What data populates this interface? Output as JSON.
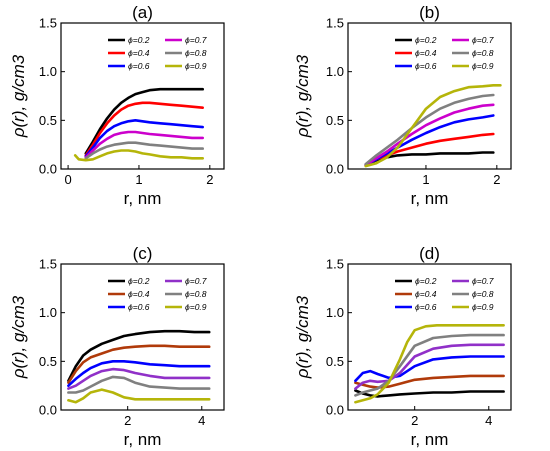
{
  "chart_data": [
    {
      "type": "line",
      "title": "(a)",
      "xlabel": "r, nm",
      "ylabel": "ρ(r), g/cm3",
      "xlim": [
        -0.1,
        2.2
      ],
      "ylim": [
        0,
        1.5
      ],
      "xticks": [
        0,
        1,
        2
      ],
      "yticks": [
        0.0,
        0.5,
        1.0,
        1.5
      ],
      "xtick_labels": [
        "0",
        "1",
        "2"
      ],
      "ytick_labels": [
        "0.0",
        "0.5",
        "1.0",
        "1.5"
      ],
      "legend_placement": "top-right",
      "series": [
        {
          "name": "ϕ=0.2",
          "color": "#000000",
          "x": [
            0.25,
            0.35,
            0.45,
            0.55,
            0.65,
            0.75,
            0.85,
            0.95,
            1.05,
            1.15,
            1.3,
            1.45,
            1.6,
            1.75,
            1.9
          ],
          "y": [
            0.16,
            0.28,
            0.41,
            0.52,
            0.61,
            0.68,
            0.73,
            0.77,
            0.79,
            0.81,
            0.82,
            0.82,
            0.82,
            0.82,
            0.82
          ]
        },
        {
          "name": "ϕ=0.4",
          "color": "#ff0000",
          "x": [
            0.25,
            0.35,
            0.45,
            0.55,
            0.65,
            0.75,
            0.85,
            0.95,
            1.05,
            1.15,
            1.3,
            1.45,
            1.6,
            1.75,
            1.9
          ],
          "y": [
            0.14,
            0.25,
            0.37,
            0.47,
            0.55,
            0.61,
            0.65,
            0.67,
            0.68,
            0.68,
            0.67,
            0.66,
            0.65,
            0.64,
            0.63
          ]
        },
        {
          "name": "ϕ=0.6",
          "color": "#0000ff",
          "x": [
            0.25,
            0.35,
            0.45,
            0.55,
            0.65,
            0.75,
            0.85,
            0.95,
            1.05,
            1.15,
            1.3,
            1.45,
            1.6,
            1.75,
            1.9
          ],
          "y": [
            0.13,
            0.22,
            0.32,
            0.39,
            0.44,
            0.47,
            0.49,
            0.5,
            0.49,
            0.48,
            0.47,
            0.46,
            0.45,
            0.44,
            0.43
          ]
        },
        {
          "name": "ϕ=0.7",
          "color": "#cc00cc",
          "x": [
            0.25,
            0.35,
            0.45,
            0.55,
            0.65,
            0.75,
            0.85,
            0.95,
            1.05,
            1.15,
            1.3,
            1.45,
            1.6,
            1.75,
            1.9
          ],
          "y": [
            0.12,
            0.19,
            0.26,
            0.31,
            0.35,
            0.37,
            0.38,
            0.38,
            0.37,
            0.36,
            0.35,
            0.34,
            0.33,
            0.32,
            0.32
          ]
        },
        {
          "name": "ϕ=0.8",
          "color": "#808080",
          "x": [
            0.25,
            0.35,
            0.45,
            0.55,
            0.65,
            0.75,
            0.85,
            0.95,
            1.05,
            1.15,
            1.3,
            1.45,
            1.6,
            1.75,
            1.9
          ],
          "y": [
            0.11,
            0.16,
            0.2,
            0.23,
            0.25,
            0.26,
            0.27,
            0.27,
            0.26,
            0.25,
            0.24,
            0.23,
            0.22,
            0.21,
            0.21
          ]
        },
        {
          "name": "ϕ=0.9",
          "color": "#b5b50a",
          "x": [
            0.1,
            0.15,
            0.25,
            0.35,
            0.45,
            0.55,
            0.65,
            0.75,
            0.85,
            0.95,
            1.05,
            1.15,
            1.3,
            1.45,
            1.6,
            1.75,
            1.9
          ],
          "y": [
            0.14,
            0.1,
            0.09,
            0.1,
            0.13,
            0.16,
            0.18,
            0.19,
            0.19,
            0.18,
            0.16,
            0.15,
            0.13,
            0.12,
            0.12,
            0.11,
            0.11
          ]
        }
      ]
    },
    {
      "type": "line",
      "title": "(b)",
      "xlabel": "r, nm",
      "ylabel": "ρ(r), g/cm3",
      "xlim": [
        -0.1,
        2.2
      ],
      "ylim": [
        0,
        1.5
      ],
      "xticks": [
        1,
        2
      ],
      "yticks": [
        0.0,
        0.5,
        1.0,
        1.5
      ],
      "xtick_labels": [
        "1",
        "2"
      ],
      "ytick_labels": [
        "0.0",
        "0.5",
        "1.0",
        "1.5"
      ],
      "legend_placement": "top-right",
      "series": [
        {
          "name": "ϕ=0.2",
          "color": "#000000",
          "x": [
            0.15,
            0.3,
            0.45,
            0.6,
            0.8,
            1.0,
            1.2,
            1.4,
            1.6,
            1.8,
            1.95
          ],
          "y": [
            0.04,
            0.09,
            0.12,
            0.14,
            0.15,
            0.15,
            0.16,
            0.16,
            0.16,
            0.17,
            0.17
          ]
        },
        {
          "name": "ϕ=0.4",
          "color": "#ff0000",
          "x": [
            0.15,
            0.3,
            0.45,
            0.6,
            0.8,
            1.0,
            1.2,
            1.4,
            1.6,
            1.8,
            1.95
          ],
          "y": [
            0.04,
            0.1,
            0.14,
            0.18,
            0.22,
            0.26,
            0.29,
            0.31,
            0.33,
            0.35,
            0.36
          ]
        },
        {
          "name": "ϕ=0.6",
          "color": "#0000ff",
          "x": [
            0.15,
            0.3,
            0.45,
            0.6,
            0.8,
            1.0,
            1.2,
            1.4,
            1.6,
            1.8,
            1.95
          ],
          "y": [
            0.04,
            0.1,
            0.16,
            0.22,
            0.3,
            0.37,
            0.43,
            0.48,
            0.51,
            0.53,
            0.55
          ]
        },
        {
          "name": "ϕ=0.7",
          "color": "#cc00cc",
          "x": [
            0.15,
            0.3,
            0.45,
            0.6,
            0.8,
            1.0,
            1.2,
            1.4,
            1.6,
            1.8,
            1.95
          ],
          "y": [
            0.04,
            0.11,
            0.18,
            0.26,
            0.36,
            0.45,
            0.52,
            0.58,
            0.62,
            0.65,
            0.66
          ]
        },
        {
          "name": "ϕ=0.8",
          "color": "#808080",
          "x": [
            0.15,
            0.3,
            0.45,
            0.6,
            0.8,
            1.0,
            1.2,
            1.4,
            1.6,
            1.8,
            1.95
          ],
          "y": [
            0.05,
            0.14,
            0.22,
            0.3,
            0.42,
            0.53,
            0.62,
            0.68,
            0.72,
            0.75,
            0.76
          ]
        },
        {
          "name": "ϕ=0.9",
          "color": "#b5b50a",
          "x": [
            0.15,
            0.3,
            0.45,
            0.6,
            0.8,
            1.0,
            1.2,
            1.4,
            1.6,
            1.8,
            1.95,
            2.05
          ],
          "y": [
            0.03,
            0.06,
            0.12,
            0.22,
            0.42,
            0.62,
            0.74,
            0.8,
            0.84,
            0.85,
            0.86,
            0.86
          ]
        }
      ]
    },
    {
      "type": "line",
      "title": "(c)",
      "xlabel": "r, nm",
      "ylabel": "ρ(r), g/cm3",
      "xlim": [
        0.2,
        4.6
      ],
      "ylim": [
        0,
        1.5
      ],
      "xticks": [
        2,
        4
      ],
      "yticks": [
        0.0,
        0.5,
        1.0,
        1.5
      ],
      "xtick_labels": [
        "2",
        "4"
      ],
      "ytick_labels": [
        "0.0",
        "0.5",
        "1.0",
        "1.5"
      ],
      "legend_placement": "top-right",
      "series": [
        {
          "name": "ϕ=0.2",
          "color": "#000000",
          "x": [
            0.4,
            0.6,
            0.8,
            1.0,
            1.3,
            1.6,
            1.9,
            2.2,
            2.6,
            3.0,
            3.4,
            3.8,
            4.2
          ],
          "y": [
            0.3,
            0.45,
            0.56,
            0.62,
            0.68,
            0.72,
            0.76,
            0.78,
            0.8,
            0.81,
            0.81,
            0.8,
            0.8
          ]
        },
        {
          "name": "ϕ=0.4",
          "color": "#b03a0a",
          "x": [
            0.4,
            0.6,
            0.8,
            1.0,
            1.3,
            1.6,
            1.9,
            2.2,
            2.6,
            3.0,
            3.4,
            3.8,
            4.2
          ],
          "y": [
            0.28,
            0.4,
            0.49,
            0.54,
            0.58,
            0.62,
            0.64,
            0.65,
            0.66,
            0.66,
            0.65,
            0.65,
            0.65
          ]
        },
        {
          "name": "ϕ=0.6",
          "color": "#0000ff",
          "x": [
            0.4,
            0.6,
            0.8,
            1.0,
            1.3,
            1.6,
            1.9,
            2.2,
            2.6,
            3.0,
            3.4,
            3.8,
            4.2
          ],
          "y": [
            0.25,
            0.32,
            0.38,
            0.43,
            0.48,
            0.5,
            0.5,
            0.49,
            0.47,
            0.46,
            0.45,
            0.45,
            0.45
          ]
        },
        {
          "name": "ϕ=0.7",
          "color": "#9030c8",
          "x": [
            0.4,
            0.6,
            0.8,
            1.0,
            1.3,
            1.6,
            1.9,
            2.2,
            2.6,
            3.0,
            3.4,
            3.8,
            4.2
          ],
          "y": [
            0.22,
            0.25,
            0.3,
            0.35,
            0.4,
            0.42,
            0.41,
            0.38,
            0.35,
            0.33,
            0.33,
            0.33,
            0.33
          ]
        },
        {
          "name": "ϕ=0.8",
          "color": "#808080",
          "x": [
            0.4,
            0.6,
            0.8,
            1.0,
            1.3,
            1.6,
            1.9,
            2.2,
            2.6,
            3.0,
            3.4,
            3.8,
            4.2
          ],
          "y": [
            0.18,
            0.18,
            0.2,
            0.24,
            0.3,
            0.34,
            0.33,
            0.28,
            0.24,
            0.23,
            0.22,
            0.22,
            0.22
          ]
        },
        {
          "name": "ϕ=0.9",
          "color": "#b5b50a",
          "x": [
            0.4,
            0.6,
            0.8,
            1.0,
            1.3,
            1.6,
            1.9,
            2.2,
            2.6,
            3.0,
            3.4,
            3.8,
            4.2
          ],
          "y": [
            0.1,
            0.08,
            0.12,
            0.18,
            0.21,
            0.18,
            0.13,
            0.11,
            0.11,
            0.11,
            0.11,
            0.11,
            0.11
          ]
        }
      ]
    },
    {
      "type": "line",
      "title": "(d)",
      "xlabel": "r, nm",
      "ylabel": "ρ(r), g/cm3",
      "xlim": [
        0.2,
        4.6
      ],
      "ylim": [
        0,
        1.5
      ],
      "xticks": [
        2,
        4
      ],
      "yticks": [
        0.0,
        0.5,
        1.0,
        1.5
      ],
      "xtick_labels": [
        "2",
        "4"
      ],
      "ytick_labels": [
        "0.0",
        "0.5",
        "1.0",
        "1.5"
      ],
      "legend_placement": "top-right",
      "series": [
        {
          "name": "ϕ=0.2",
          "color": "#000000",
          "x": [
            0.4,
            0.6,
            0.8,
            1.0,
            1.3,
            1.6,
            2.0,
            2.5,
            3.0,
            3.5,
            4.0,
            4.4
          ],
          "y": [
            0.2,
            0.17,
            0.15,
            0.14,
            0.15,
            0.16,
            0.17,
            0.18,
            0.18,
            0.19,
            0.19,
            0.19
          ]
        },
        {
          "name": "ϕ=0.4",
          "color": "#b03a0a",
          "x": [
            0.4,
            0.6,
            0.8,
            1.0,
            1.3,
            1.6,
            2.0,
            2.5,
            3.0,
            3.5,
            4.0,
            4.4
          ],
          "y": [
            0.28,
            0.26,
            0.24,
            0.23,
            0.24,
            0.27,
            0.31,
            0.33,
            0.34,
            0.35,
            0.35,
            0.35
          ]
        },
        {
          "name": "ϕ=0.6",
          "color": "#0000ff",
          "x": [
            0.4,
            0.6,
            0.8,
            1.0,
            1.3,
            1.6,
            2.0,
            2.5,
            3.0,
            3.5,
            4.0,
            4.4
          ],
          "y": [
            0.3,
            0.38,
            0.4,
            0.37,
            0.33,
            0.35,
            0.45,
            0.52,
            0.54,
            0.55,
            0.55,
            0.55
          ]
        },
        {
          "name": "ϕ=0.7",
          "color": "#9030c8",
          "x": [
            0.4,
            0.6,
            0.8,
            1.0,
            1.3,
            1.6,
            2.0,
            2.5,
            3.0,
            3.5,
            4.0,
            4.4
          ],
          "y": [
            0.22,
            0.28,
            0.3,
            0.29,
            0.3,
            0.38,
            0.55,
            0.63,
            0.66,
            0.67,
            0.67,
            0.67
          ]
        },
        {
          "name": "ϕ=0.8",
          "color": "#808080",
          "x": [
            0.4,
            0.6,
            0.8,
            1.0,
            1.3,
            1.6,
            2.0,
            2.5,
            3.0,
            3.5,
            4.0,
            4.4
          ],
          "y": [
            0.15,
            0.18,
            0.2,
            0.22,
            0.3,
            0.45,
            0.66,
            0.74,
            0.76,
            0.77,
            0.77,
            0.77
          ]
        },
        {
          "name": "ϕ=0.9",
          "color": "#b5b50a",
          "x": [
            0.4,
            0.6,
            0.8,
            1.0,
            1.3,
            1.6,
            1.8,
            2.0,
            2.3,
            2.6,
            3.0,
            3.5,
            4.0,
            4.4
          ],
          "y": [
            0.08,
            0.1,
            0.12,
            0.16,
            0.28,
            0.52,
            0.7,
            0.82,
            0.86,
            0.87,
            0.87,
            0.87,
            0.87,
            0.87
          ]
        }
      ]
    }
  ]
}
